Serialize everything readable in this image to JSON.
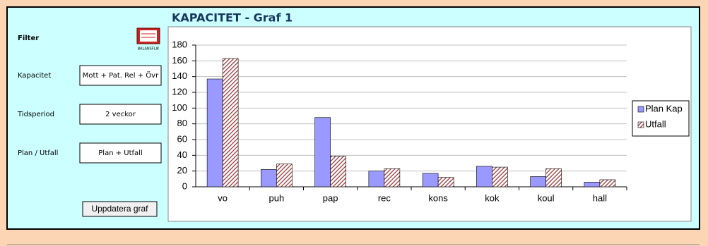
{
  "panel": {
    "filter_label": "Filter",
    "icon_label": "BALANSFLIK",
    "fields": [
      {
        "label": "Kapacitet",
        "value": "Mott + Pat. Rel + Övr"
      },
      {
        "label": "Tidsperiod",
        "value": "2 veckor"
      },
      {
        "label": "Plan / Utfall",
        "value": "Plan + Utfall"
      }
    ],
    "button": "Uppdatera graf"
  },
  "chart_data": {
    "type": "bar",
    "title": "KAPACITET - Graf 1",
    "categories": [
      "vo",
      "puh",
      "pap",
      "rec",
      "kons",
      "kok",
      "koul",
      "hall"
    ],
    "series": [
      {
        "name": "Plan Kap",
        "color": "#9999ff",
        "values": [
          137,
          22,
          88,
          20,
          17,
          26,
          13,
          6
        ]
      },
      {
        "name": "Utfall",
        "color": "#993333",
        "hatched": true,
        "values": [
          163,
          29,
          39,
          23,
          12,
          25,
          23,
          9
        ]
      }
    ],
    "ylim": [
      0,
      180
    ],
    "yticks": [
      0,
      20,
      40,
      60,
      80,
      100,
      120,
      140,
      160,
      180
    ],
    "grid": true,
    "legend": "right"
  }
}
